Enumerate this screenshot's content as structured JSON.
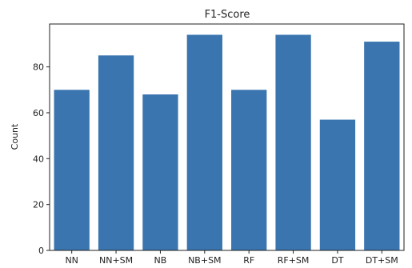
{
  "chart_data": {
    "type": "bar",
    "title": "F1-Score",
    "xlabel": "",
    "ylabel": "Count",
    "categories": [
      "NN",
      "NN+SM",
      "NB",
      "NB+SM",
      "RF",
      "RF+SM",
      "DT",
      "DT+SM"
    ],
    "values": [
      70,
      85,
      68,
      94,
      70,
      94,
      57,
      91
    ],
    "ylim": [
      0,
      98.7
    ],
    "yticks": [
      0,
      20,
      40,
      60,
      80
    ],
    "bar_color": "#3a75af",
    "grid": false,
    "legend": "none"
  }
}
